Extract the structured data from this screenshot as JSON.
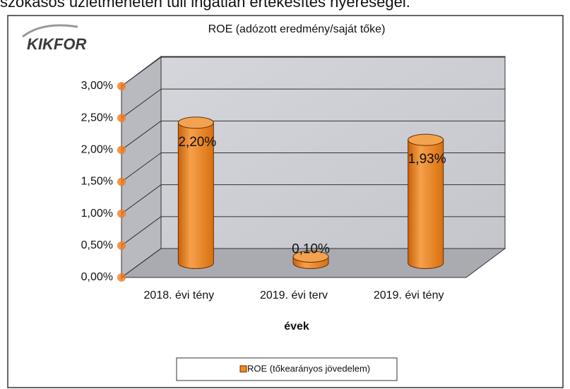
{
  "header_text": "szokásos üzletmeneten túli ingatlan értékesítés nyereségei.",
  "logo": "KIKFOR",
  "chart_data": {
    "type": "bar3d",
    "title": "ROE (adózott eredmény/saját tőke)",
    "x_label": "évek",
    "categories": [
      "2018. évi tény",
      "2019. évi terv",
      "2019. évi tény"
    ],
    "series": [
      {
        "name": "ROE (tőkearányos jövedelem)",
        "color": "#f08a1e",
        "values": [
          2.2,
          0.1,
          1.93
        ],
        "value_labels": [
          "2,20%",
          "0,10%",
          "1,93%"
        ]
      }
    ],
    "ylim": [
      0,
      3
    ],
    "yticks": [
      {
        "value": 0,
        "label": "0,00%"
      },
      {
        "value": 0.5,
        "label": "0,50%"
      },
      {
        "value": 1,
        "label": "1,00%"
      },
      {
        "value": 1.5,
        "label": "1,50%"
      },
      {
        "value": 2,
        "label": "2,00%"
      },
      {
        "value": 2.5,
        "label": "2,50%"
      },
      {
        "value": 3,
        "label": "3,00%"
      }
    ],
    "grid": true,
    "legend": "bottom"
  }
}
